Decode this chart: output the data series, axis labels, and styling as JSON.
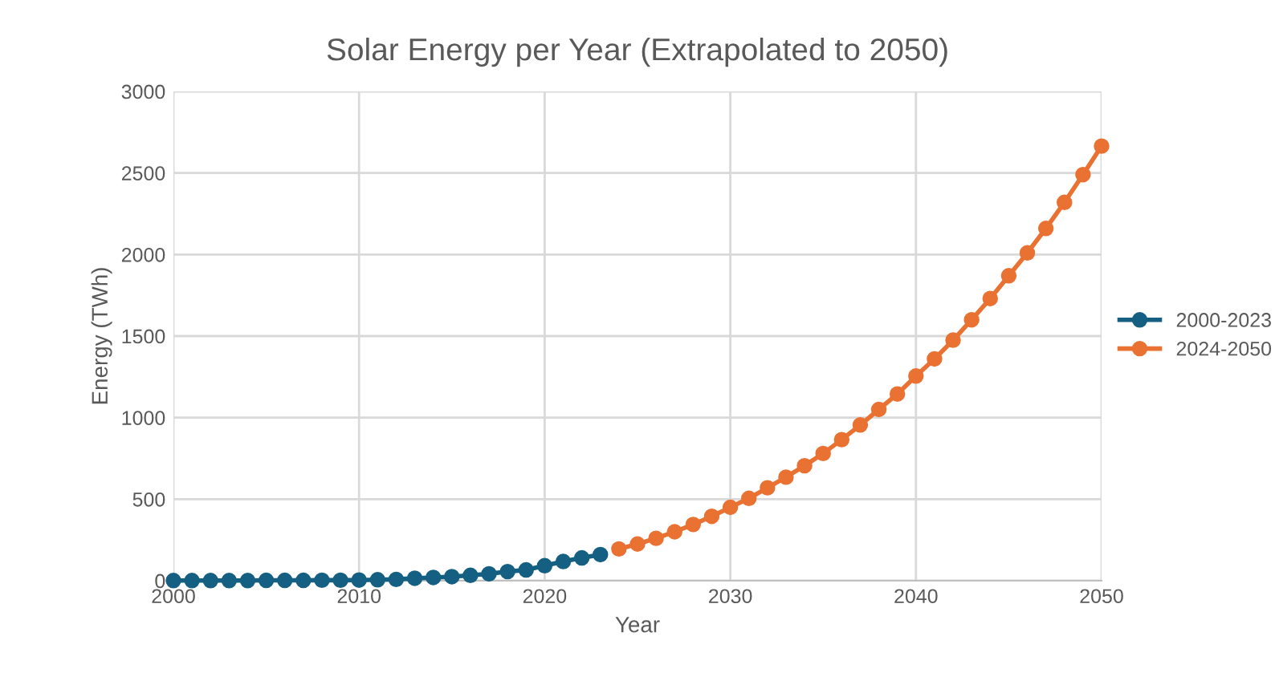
{
  "chart_data": {
    "type": "line",
    "title": "Solar Energy per Year (Extrapolated to 2050)",
    "xlabel": "Year",
    "ylabel": "Energy (TWh)",
    "xlim": [
      2000,
      2050
    ],
    "xticks": [
      2000,
      2010,
      2020,
      2030,
      2040,
      2050
    ],
    "ylim": [
      0,
      3000
    ],
    "yticks": [
      0,
      500,
      1000,
      1500,
      2000,
      2500,
      3000
    ],
    "grid": true,
    "legend": "right",
    "marker": "circle",
    "line_style": "solid",
    "series": [
      {
        "name": "2000-2023",
        "color": "#156082",
        "x": [
          2000,
          2001,
          2002,
          2003,
          2004,
          2005,
          2006,
          2007,
          2008,
          2009,
          2010,
          2011,
          2012,
          2013,
          2014,
          2015,
          2016,
          2017,
          2018,
          2019,
          2020,
          2021,
          2022,
          2023
        ],
        "values": [
          1,
          1,
          1,
          1,
          1,
          2,
          2,
          2,
          3,
          3,
          4,
          6,
          8,
          15,
          20,
          25,
          33,
          42,
          56,
          66,
          92,
          118,
          140,
          160
        ]
      },
      {
        "name": "2024-2050",
        "color": "#e97132",
        "x": [
          2024,
          2025,
          2026,
          2027,
          2028,
          2029,
          2030,
          2031,
          2032,
          2033,
          2034,
          2035,
          2036,
          2037,
          2038,
          2039,
          2040,
          2041,
          2042,
          2043,
          2044,
          2045,
          2046,
          2047,
          2048,
          2049,
          2050
        ],
        "values": [
          195,
          225,
          260,
          300,
          345,
          395,
          450,
          505,
          570,
          635,
          705,
          780,
          865,
          955,
          1050,
          1145,
          1255,
          1360,
          1475,
          1600,
          1730,
          1870,
          2010,
          2160,
          2320,
          2490,
          2665
        ]
      }
    ]
  }
}
